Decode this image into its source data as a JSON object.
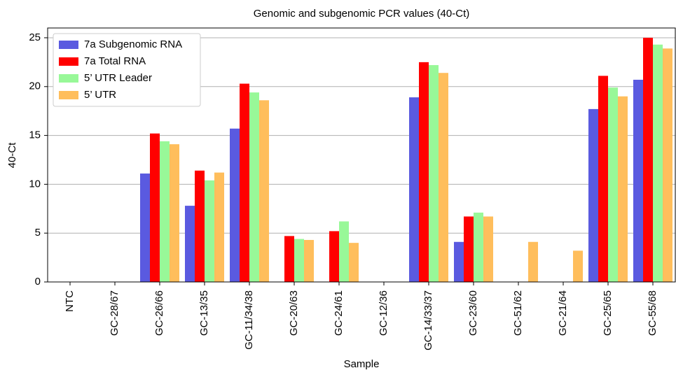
{
  "chart_data": {
    "type": "bar",
    "title": "Genomic and subgenomic PCR values (40-Ct)",
    "xlabel": "Sample",
    "ylabel": "40-Ct",
    "categories": [
      "NTC",
      "GC-28/67",
      "GC-26/66",
      "GC-13/35",
      "GC-11/34/38",
      "GC-20/63",
      "GC-24/61",
      "GC-12/36",
      "GC-14/33/37",
      "GC-23/60",
      "GC-51/62",
      "GC-21/64",
      "GC-25/65",
      "GC-55/68"
    ],
    "series": [
      {
        "name": "7a Subgenomic RNA",
        "color": "#5a5ae0",
        "values": [
          0,
          0,
          11.1,
          7.8,
          15.7,
          0,
          0,
          0,
          18.9,
          4.1,
          0,
          0,
          17.7,
          20.7
        ]
      },
      {
        "name": "7a Total RNA",
        "color": "#ff0000",
        "values": [
          0,
          0,
          15.2,
          11.4,
          20.3,
          4.7,
          5.2,
          0,
          22.5,
          6.7,
          0,
          0,
          21.1,
          25.0
        ]
      },
      {
        "name": "5’ UTR Leader",
        "color": "#98f898",
        "values": [
          0,
          0,
          14.4,
          10.4,
          19.4,
          4.4,
          6.2,
          0,
          22.2,
          7.1,
          0,
          0,
          19.9,
          24.3
        ]
      },
      {
        "name": "5’ UTR",
        "color": "#ffbe5c",
        "values": [
          0,
          0,
          14.1,
          11.2,
          18.6,
          4.3,
          4.0,
          0,
          21.4,
          6.7,
          4.1,
          3.2,
          19.0,
          23.9
        ]
      }
    ],
    "ylim": [
      0,
      26
    ],
    "yticks": [
      0,
      5,
      10,
      15,
      20,
      25
    ],
    "grid": true,
    "legend": "upper left"
  }
}
